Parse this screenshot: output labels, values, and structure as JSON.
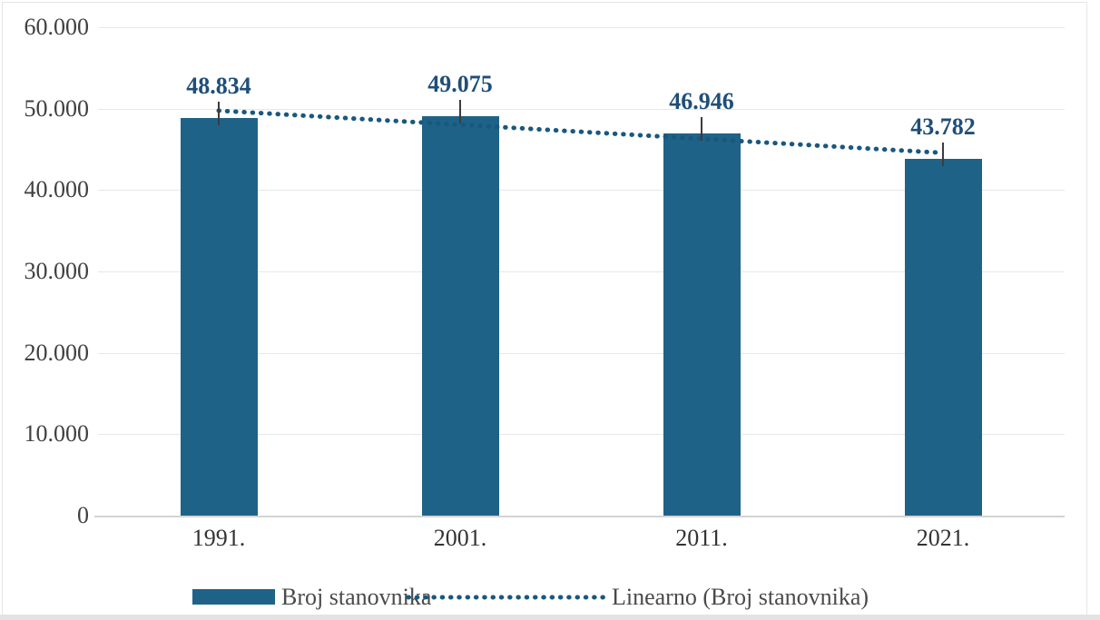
{
  "colors": {
    "bar": "#1F6287",
    "trendline": "#19587E",
    "data_label": "#1F4E79",
    "axis_tick_label": "#404040",
    "x_axis_label": "#333333",
    "legend_text": "#4a4a4a",
    "gridline": "#e7e7e7",
    "axis_line": "#d4d4d4",
    "leader_line": "#3c3c3c",
    "frame_border": "#e6e6e6"
  },
  "chart_data": {
    "type": "bar",
    "categories": [
      "1991.",
      "2001.",
      "2011.",
      "2021."
    ],
    "series": [
      {
        "name": "Broj stanovnika",
        "values": [
          48834,
          49075,
          46946,
          43782
        ]
      }
    ],
    "data_labels": [
      "48.834",
      "49.075",
      "46.946",
      "43.782"
    ],
    "trendline": {
      "name": "Linearno (Broj stanovnika)",
      "style": "dotted",
      "start_value": 49752,
      "end_value": 44567
    },
    "title": "",
    "xlabel": "",
    "ylabel": "",
    "ylim": [
      0,
      60000
    ],
    "y_ticks": [
      {
        "value": 60000,
        "label": "60.000"
      },
      {
        "value": 50000,
        "label": "50.000"
      },
      {
        "value": 40000,
        "label": "40.000"
      },
      {
        "value": 30000,
        "label": "30.000"
      },
      {
        "value": 20000,
        "label": "20.000"
      },
      {
        "value": 10000,
        "label": "10.000"
      },
      {
        "value": 0,
        "label": "0"
      }
    ],
    "grid": "horizontal",
    "legend_position": "bottom"
  },
  "legend": {
    "items": [
      {
        "label": "Broj stanovnika",
        "marker": "bar-swatch"
      },
      {
        "label": "Linearno (Broj stanovnika)",
        "marker": "dotted-line"
      }
    ]
  }
}
